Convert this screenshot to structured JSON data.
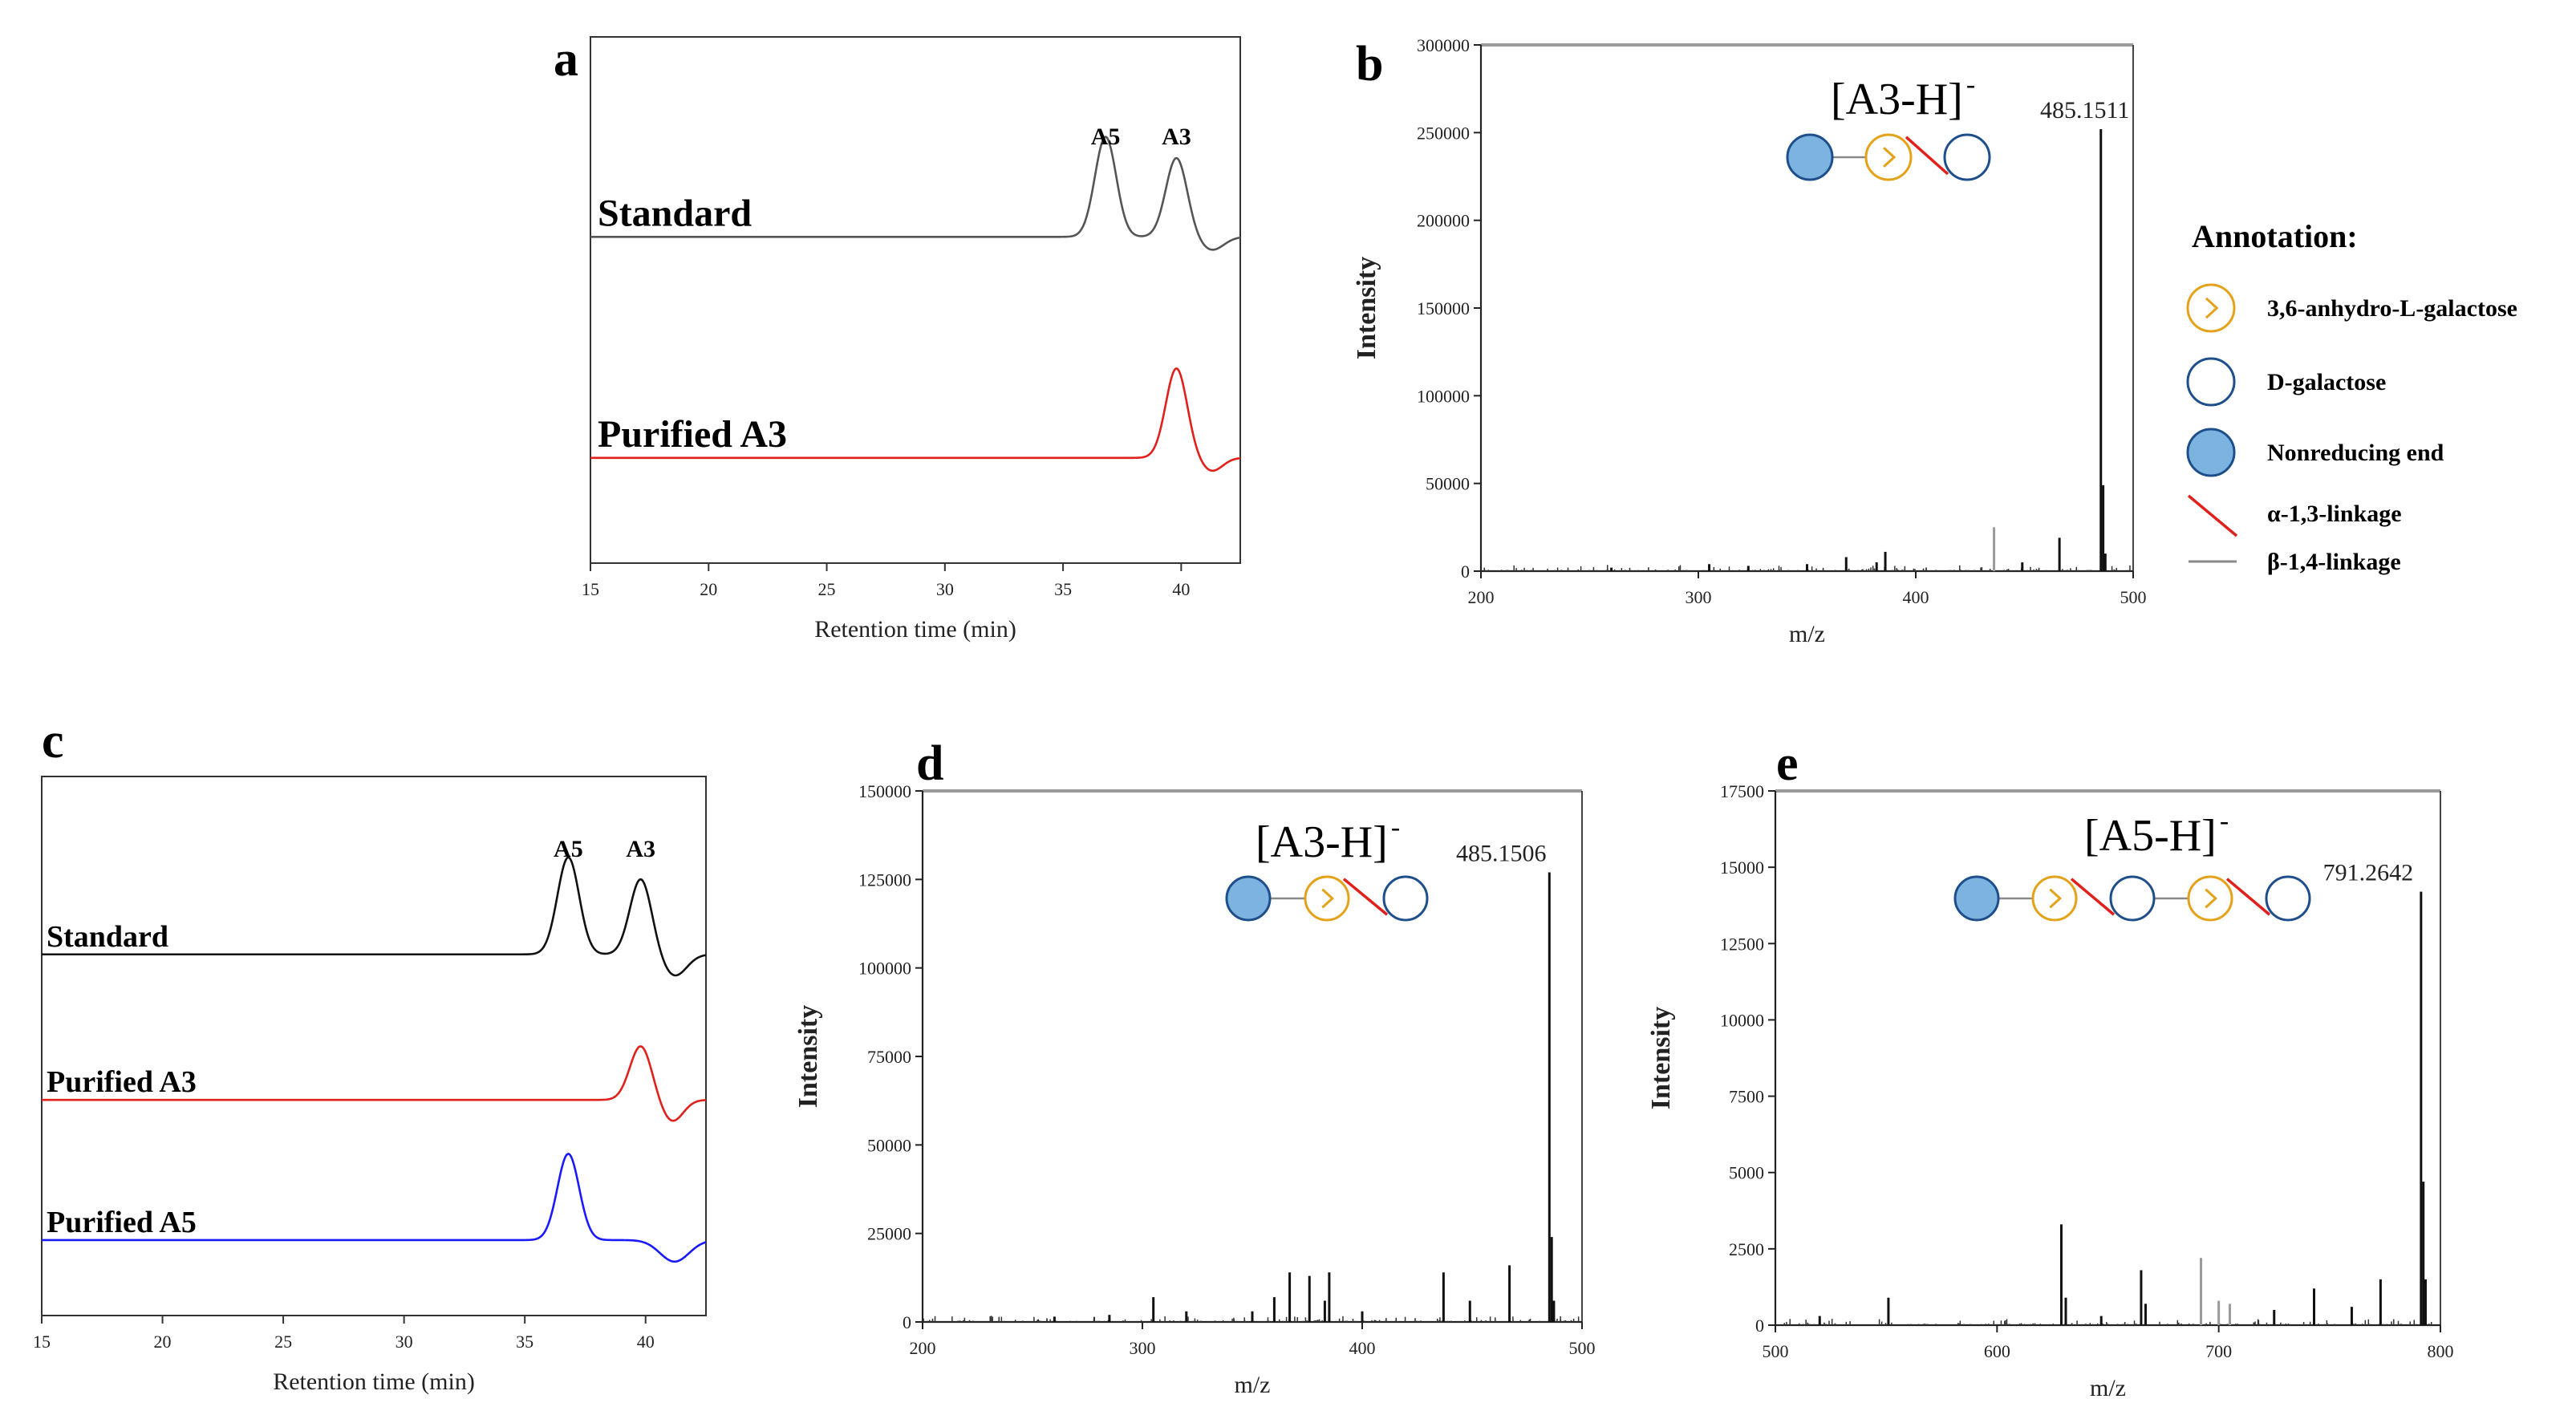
{
  "colors": {
    "black": "#111111",
    "red": "#e0201b",
    "blue": "#1a1aff",
    "standard_gray": "#555555",
    "gray_spec": "#9a9a9a",
    "orange": "#e3a21a",
    "navy": "#1f4f8b",
    "fill_blue": "#7db3e0",
    "link_red": "#e0201b",
    "link_gray": "#8a8a8a"
  },
  "chart_data": [
    {
      "id": "a",
      "panel_label": "a",
      "type": "line",
      "xlabel": "Retention time (min)",
      "xlim": [
        15,
        42.5
      ],
      "xticks": [
        15,
        20,
        25,
        30,
        35,
        40
      ],
      "peak_labels": [
        {
          "text": "A5",
          "x": 36.8
        },
        {
          "text": "A3",
          "x": 39.8
        }
      ],
      "series": [
        {
          "name": "Standard",
          "color": "#555555",
          "baseline_level": 0.62,
          "peaks": [
            {
              "center": 36.8,
              "height": 0.19,
              "width": 0.45
            },
            {
              "center": 39.8,
              "height": 0.15,
              "width": 0.45
            }
          ],
          "dips": [
            {
              "center": 41.3,
              "depth": 0.025,
              "width": 0.5
            }
          ]
        },
        {
          "name": "Purified A3",
          "color": "#e0201b",
          "baseline_level": 0.2,
          "peaks": [
            {
              "center": 39.8,
              "height": 0.17,
              "width": 0.45
            }
          ],
          "dips": [
            {
              "center": 41.3,
              "depth": 0.025,
              "width": 0.45
            }
          ]
        }
      ]
    },
    {
      "id": "b",
      "panel_label": "b",
      "type": "bar",
      "xlabel": "m/z",
      "ylabel": "Intensity",
      "xlim": [
        200,
        500
      ],
      "ylim": [
        0,
        300000
      ],
      "xticks": [
        200,
        300,
        400,
        500
      ],
      "yticks": [
        0,
        50000,
        100000,
        150000,
        200000,
        250000,
        300000
      ],
      "ion": "[A3-H]",
      "ion_charge": "-",
      "peak_label": "485.1511",
      "glycan": [
        "nonreducing",
        "anhydro",
        "galactose"
      ],
      "peaks": [
        {
          "x": 485.15,
          "y": 252000,
          "color": "#111111"
        },
        {
          "x": 486.2,
          "y": 49000,
          "color": "#111111"
        },
        {
          "x": 487.2,
          "y": 10000,
          "color": "#111111"
        },
        {
          "x": 466.1,
          "y": 19000,
          "color": "#111111"
        },
        {
          "x": 436.0,
          "y": 25000,
          "color": "#9a9a9a"
        },
        {
          "x": 449.0,
          "y": 5000,
          "color": "#111111"
        },
        {
          "x": 386.0,
          "y": 11000,
          "color": "#111111"
        },
        {
          "x": 382.0,
          "y": 5000,
          "color": "#111111"
        },
        {
          "x": 368.0,
          "y": 8000,
          "color": "#111111"
        },
        {
          "x": 350.0,
          "y": 4000,
          "color": "#111111"
        },
        {
          "x": 305.0,
          "y": 4000,
          "color": "#111111"
        },
        {
          "x": 323.0,
          "y": 3000,
          "color": "#111111"
        },
        {
          "x": 260.0,
          "y": 2000,
          "color": "#111111"
        }
      ]
    },
    {
      "id": "c",
      "panel_label": "c",
      "type": "line",
      "xlabel": "Retention time (min)",
      "xlim": [
        15,
        42.5
      ],
      "xticks": [
        15,
        20,
        25,
        30,
        35,
        40
      ],
      "peak_labels": [
        {
          "text": "A5",
          "x": 36.8
        },
        {
          "text": "A3",
          "x": 39.8
        }
      ],
      "series": [
        {
          "name": "Standard",
          "color": "#111111",
          "baseline_level": 0.67,
          "peaks": [
            {
              "center": 36.8,
              "height": 0.18,
              "width": 0.45
            },
            {
              "center": 39.8,
              "height": 0.14,
              "width": 0.45
            }
          ],
          "dips": [
            {
              "center": 41.2,
              "depth": 0.04,
              "width": 0.5
            }
          ]
        },
        {
          "name": "Purified A3",
          "color": "#e0201b",
          "baseline_level": 0.4,
          "peaks": [
            {
              "center": 39.8,
              "height": 0.1,
              "width": 0.45
            }
          ],
          "dips": [
            {
              "center": 41.1,
              "depth": 0.04,
              "width": 0.45
            }
          ]
        },
        {
          "name": "Purified A5",
          "color": "#1a1aff",
          "baseline_level": 0.14,
          "peaks": [
            {
              "center": 36.8,
              "height": 0.16,
              "width": 0.45
            }
          ],
          "dips": [
            {
              "center": 41.2,
              "depth": 0.04,
              "width": 0.6
            }
          ]
        }
      ]
    },
    {
      "id": "d",
      "panel_label": "d",
      "type": "bar",
      "xlabel": "m/z",
      "ylabel": "Intensity",
      "xlim": [
        200,
        500
      ],
      "ylim": [
        0,
        150000
      ],
      "xticks": [
        200,
        300,
        400,
        500
      ],
      "yticks": [
        0,
        25000,
        50000,
        75000,
        100000,
        125000,
        150000
      ],
      "ion": "[A3-H]",
      "ion_charge": "-",
      "peak_label": "485.1506",
      "glycan": [
        "nonreducing",
        "anhydro",
        "galactose"
      ],
      "peaks": [
        {
          "x": 485.15,
          "y": 127000,
          "color": "#111111"
        },
        {
          "x": 486.2,
          "y": 24000,
          "color": "#111111"
        },
        {
          "x": 487.2,
          "y": 6000,
          "color": "#111111"
        },
        {
          "x": 467.0,
          "y": 16000,
          "color": "#111111"
        },
        {
          "x": 437.0,
          "y": 14000,
          "color": "#111111"
        },
        {
          "x": 449.0,
          "y": 6000,
          "color": "#111111"
        },
        {
          "x": 385.0,
          "y": 14000,
          "color": "#111111"
        },
        {
          "x": 383.0,
          "y": 6000,
          "color": "#111111"
        },
        {
          "x": 376.0,
          "y": 13000,
          "color": "#111111"
        },
        {
          "x": 367.0,
          "y": 14000,
          "color": "#111111"
        },
        {
          "x": 360.0,
          "y": 7000,
          "color": "#111111"
        },
        {
          "x": 350.0,
          "y": 3000,
          "color": "#111111"
        },
        {
          "x": 305.0,
          "y": 7000,
          "color": "#111111"
        },
        {
          "x": 320.0,
          "y": 3000,
          "color": "#111111"
        },
        {
          "x": 400.0,
          "y": 3000,
          "color": "#111111"
        },
        {
          "x": 285.0,
          "y": 2000,
          "color": "#111111"
        },
        {
          "x": 260.0,
          "y": 1500,
          "color": "#111111"
        }
      ]
    },
    {
      "id": "e",
      "panel_label": "e",
      "type": "bar",
      "xlabel": "m/z",
      "ylabel": "Intensity",
      "xlim": [
        500,
        800
      ],
      "ylim": [
        0,
        17500
      ],
      "xticks": [
        500,
        600,
        700,
        800
      ],
      "yticks": [
        0,
        2500,
        5000,
        7500,
        10000,
        12500,
        15000,
        17500
      ],
      "ion": "[A5-H]",
      "ion_charge": "-",
      "peak_label": "791.2642",
      "glycan": [
        "nonreducing",
        "anhydro",
        "galactose",
        "anhydro",
        "galactose"
      ],
      "peaks": [
        {
          "x": 791.26,
          "y": 14200,
          "color": "#111111"
        },
        {
          "x": 792.3,
          "y": 4700,
          "color": "#111111"
        },
        {
          "x": 793.3,
          "y": 1500,
          "color": "#111111"
        },
        {
          "x": 773.0,
          "y": 1500,
          "color": "#111111"
        },
        {
          "x": 760.0,
          "y": 600,
          "color": "#111111"
        },
        {
          "x": 743.0,
          "y": 1200,
          "color": "#111111"
        },
        {
          "x": 725.0,
          "y": 500,
          "color": "#111111"
        },
        {
          "x": 692.0,
          "y": 2200,
          "color": "#9a9a9a"
        },
        {
          "x": 700.0,
          "y": 800,
          "color": "#9a9a9a"
        },
        {
          "x": 705.0,
          "y": 700,
          "color": "#9a9a9a"
        },
        {
          "x": 665.0,
          "y": 1800,
          "color": "#111111"
        },
        {
          "x": 667.0,
          "y": 700,
          "color": "#111111"
        },
        {
          "x": 629.0,
          "y": 3300,
          "color": "#111111"
        },
        {
          "x": 631.0,
          "y": 900,
          "color": "#111111"
        },
        {
          "x": 551.0,
          "y": 900,
          "color": "#111111"
        },
        {
          "x": 647.0,
          "y": 300,
          "color": "#111111"
        },
        {
          "x": 520.0,
          "y": 300,
          "color": "#111111"
        }
      ]
    }
  ],
  "legend": {
    "title": "Annotation:",
    "items": [
      {
        "kind": "anhydro",
        "label": "3,6-anhydro-L-galactose"
      },
      {
        "kind": "galactose",
        "label": "D-galactose"
      },
      {
        "kind": "nonreducing",
        "label": "Nonreducing end"
      },
      {
        "kind": "alpha",
        "label": "α-1,3-linkage"
      },
      {
        "kind": "beta",
        "label": "β-1,4-linkage"
      }
    ]
  }
}
